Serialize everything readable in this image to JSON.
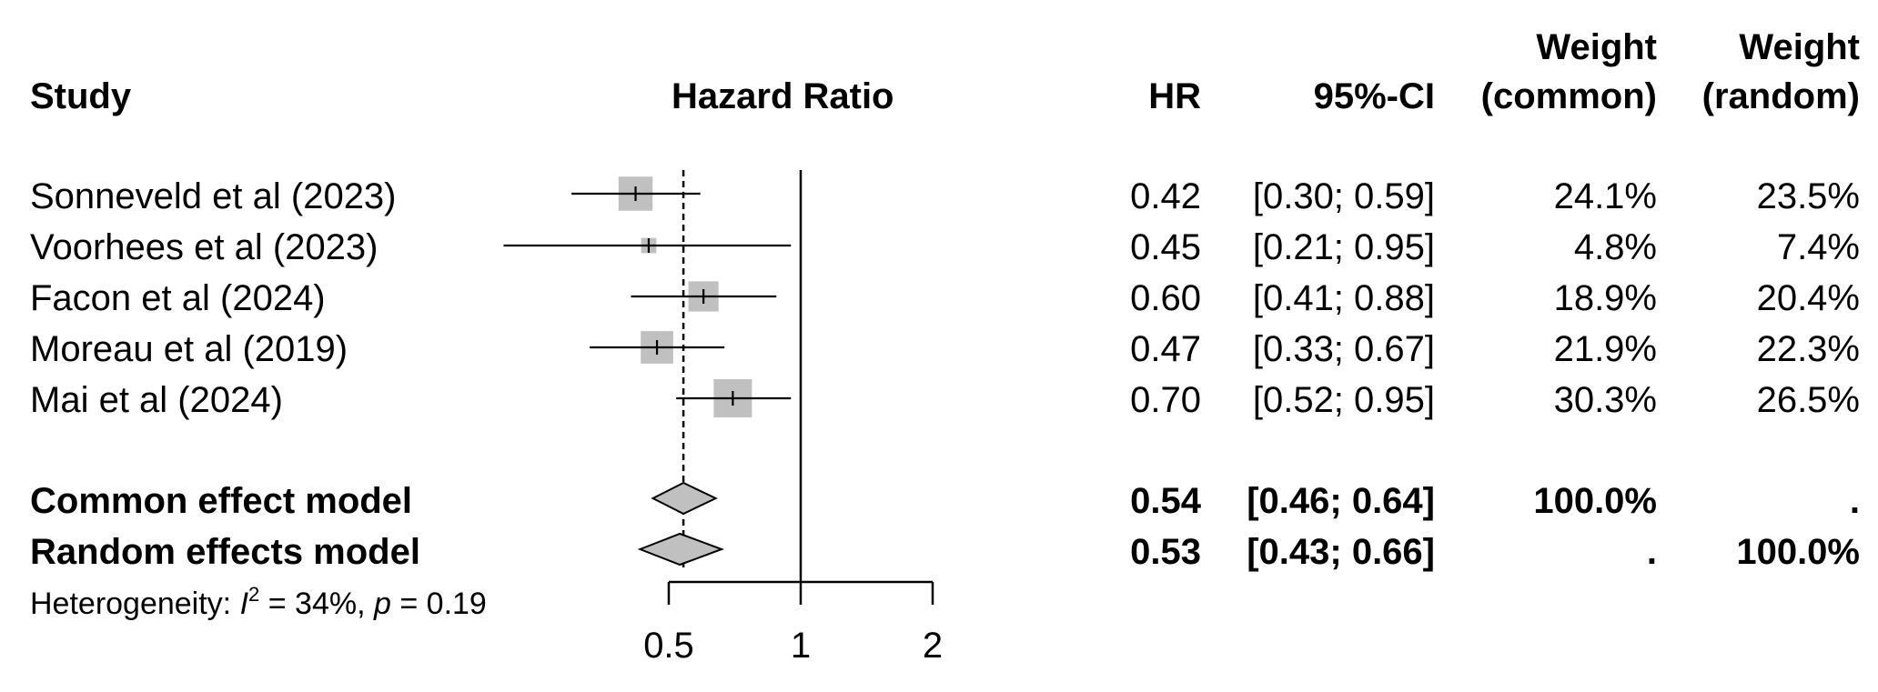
{
  "headers": {
    "study": "Study",
    "hazard_ratio": "Hazard Ratio",
    "hr": "HR",
    "ci": "95%-CI",
    "weight_common_1": "Weight",
    "weight_common_2": "(common)",
    "weight_random_1": "Weight",
    "weight_random_2": "(random)"
  },
  "studies": [
    {
      "name": "Sonneveld et al (2023)",
      "hr_text": "0.42",
      "ci_text": "[0.30; 0.59]",
      "w_common": "24.1%",
      "w_random": "23.5%"
    },
    {
      "name": "Voorhees et al (2023)",
      "hr_text": "0.45",
      "ci_text": "[0.21; 0.95]",
      "w_common": "4.8%",
      "w_random": "7.4%"
    },
    {
      "name": "Facon et al (2024)",
      "hr_text": "0.60",
      "ci_text": "[0.41; 0.88]",
      "w_common": "18.9%",
      "w_random": "20.4%"
    },
    {
      "name": "Moreau et al (2019)",
      "hr_text": "0.47",
      "ci_text": "[0.33; 0.67]",
      "w_common": "21.9%",
      "w_random": "22.3%"
    },
    {
      "name": "Mai et al (2024)",
      "hr_text": "0.70",
      "ci_text": "[0.52; 0.95]",
      "w_common": "30.3%",
      "w_random": "26.5%"
    }
  ],
  "models": [
    {
      "name": "Common effect model",
      "hr_text": "0.54",
      "ci_text": "[0.46; 0.64]",
      "w_common": "100.0%",
      "w_random": "."
    },
    {
      "name": "Random effects model",
      "hr_text": "0.53",
      "ci_text": "[0.43; 0.66]",
      "w_common": ".",
      "w_random": "100.0%"
    }
  ],
  "heterogeneity": {
    "prefix": "Heterogeneity: ",
    "i": "I",
    "sup": "2",
    "mid": " = 34%, ",
    "p": "p",
    "suffix": " = 0.19"
  },
  "chart_data": {
    "type": "forest",
    "scale": "log",
    "xlim": [
      0.5,
      2
    ],
    "xticks": [
      0.5,
      1,
      2
    ],
    "xtick_labels": [
      "0.5",
      "1",
      "2"
    ],
    "reference_line": 1,
    "common_effect_line": 0.54,
    "studies": [
      {
        "label": "Sonneveld et al (2023)",
        "hr": 0.42,
        "lower": 0.3,
        "upper": 0.59,
        "weight_common": 24.1,
        "weight_random": 23.5
      },
      {
        "label": "Voorhees et al (2023)",
        "hr": 0.45,
        "lower": 0.21,
        "upper": 0.95,
        "weight_common": 4.8,
        "weight_random": 7.4
      },
      {
        "label": "Facon et al (2024)",
        "hr": 0.6,
        "lower": 0.41,
        "upper": 0.88,
        "weight_common": 18.9,
        "weight_random": 20.4
      },
      {
        "label": "Moreau et al (2019)",
        "hr": 0.47,
        "lower": 0.33,
        "upper": 0.67,
        "weight_common": 21.9,
        "weight_random": 22.3
      },
      {
        "label": "Mai et al (2024)",
        "hr": 0.7,
        "lower": 0.52,
        "upper": 0.95,
        "weight_common": 30.3,
        "weight_random": 26.5
      }
    ],
    "pooled": [
      {
        "label": "Common effect model",
        "hr": 0.54,
        "lower": 0.46,
        "upper": 0.64
      },
      {
        "label": "Random effects model",
        "hr": 0.53,
        "lower": 0.43,
        "upper": 0.66
      }
    ],
    "colors": {
      "square": "#c0c0c0",
      "diamond": "#c0c0c0",
      "line": "#000000"
    }
  }
}
